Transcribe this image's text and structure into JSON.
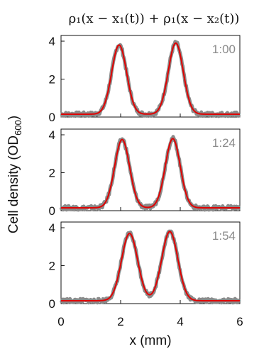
{
  "header": {
    "formula": "ρ₁(x − x₁(t)) + ρ₁(x − x₂(t))"
  },
  "chart_data": {
    "type": "line",
    "xlabel": "x (mm)",
    "ylabel": "Cell density (OD600)",
    "ylabel_main": "Cell density (OD",
    "ylabel_sub": "600",
    "ylabel_close": ")",
    "xlim": [
      0,
      6
    ],
    "ylim": [
      0,
      4.3
    ],
    "x_ticks": [
      "0",
      "2",
      "4",
      "6"
    ],
    "y_ticks": [
      "0",
      "2",
      "4"
    ],
    "colors": {
      "data": "#8a8a8a",
      "fit": "#e00000"
    },
    "panels": [
      {
        "time": "1:00",
        "peaks": [
          {
            "x": 1.95,
            "height": 3.8,
            "width": 0.25
          },
          {
            "x": 3.85,
            "height": 3.9,
            "width": 0.25
          }
        ],
        "baseline": 0.15
      },
      {
        "time": "1:24",
        "peaks": [
          {
            "x": 2.05,
            "height": 3.75,
            "width": 0.25
          },
          {
            "x": 3.75,
            "height": 3.8,
            "width": 0.25
          }
        ],
        "baseline": 0.15
      },
      {
        "time": "1:54",
        "peaks": [
          {
            "x": 2.3,
            "height": 3.7,
            "width": 0.27
          },
          {
            "x": 3.65,
            "height": 3.8,
            "width": 0.27
          }
        ],
        "baseline": 0.15
      }
    ]
  }
}
